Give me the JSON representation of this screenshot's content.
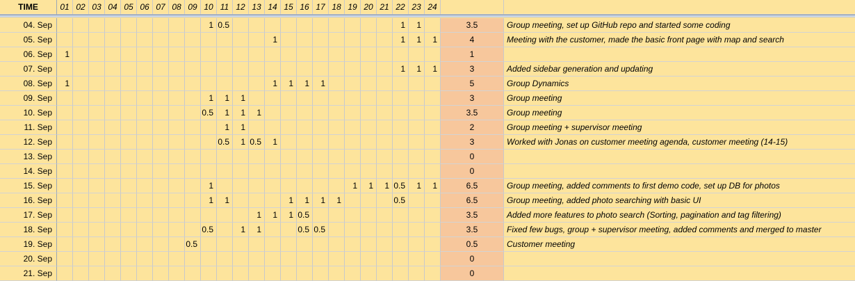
{
  "header": {
    "time_label": "TIME",
    "hours": [
      "01",
      "02",
      "03",
      "04",
      "05",
      "06",
      "07",
      "08",
      "09",
      "10",
      "11",
      "12",
      "13",
      "14",
      "15",
      "16",
      "17",
      "18",
      "19",
      "20",
      "21",
      "22",
      "23",
      "24"
    ]
  },
  "rows": [
    {
      "date": "04. Sep",
      "hours": {
        "10": "1",
        "11": "0.5",
        "22": "1",
        "23": "1"
      },
      "total": "3.5",
      "desc": "Group meeting, set up GitHub repo and started some coding"
    },
    {
      "date": "05. Sep",
      "hours": {
        "14": "1",
        "22": "1",
        "23": "1",
        "24": "1"
      },
      "total": "4",
      "desc": "Meeting with the customer, made the basic front page with map and search"
    },
    {
      "date": "06. Sep",
      "hours": {
        "01": "1"
      },
      "total": "1",
      "desc": ""
    },
    {
      "date": "07. Sep",
      "hours": {
        "22": "1",
        "23": "1",
        "24": "1"
      },
      "total": "3",
      "desc": "Added sidebar generation and updating"
    },
    {
      "date": "08. Sep",
      "hours": {
        "01": "1",
        "14": "1",
        "15": "1",
        "16": "1",
        "17": "1"
      },
      "total": "5",
      "desc": "Group Dynamics"
    },
    {
      "date": "09. Sep",
      "hours": {
        "10": "1",
        "11": "1",
        "12": "1"
      },
      "total": "3",
      "desc": "Group meeting"
    },
    {
      "date": "10. Sep",
      "hours": {
        "10": "0.5",
        "11": "1",
        "12": "1",
        "13": "1"
      },
      "total": "3.5",
      "desc": "Group meeting"
    },
    {
      "date": "11. Sep",
      "hours": {
        "11": "1",
        "12": "1"
      },
      "total": "2",
      "desc": "Group meeting + supervisor meeting"
    },
    {
      "date": "12. Sep",
      "hours": {
        "11": "0.5",
        "12": "1",
        "13": "0.5",
        "14": "1"
      },
      "total": "3",
      "desc": "Worked with Jonas on customer meeting agenda, customer meeting (14-15)"
    },
    {
      "date": "13. Sep",
      "hours": {},
      "total": "0",
      "desc": ""
    },
    {
      "date": "14. Sep",
      "hours": {},
      "total": "0",
      "desc": ""
    },
    {
      "date": "15. Sep",
      "hours": {
        "10": "1",
        "19": "1",
        "20": "1",
        "21": "1",
        "22": "0.5",
        "23": "1",
        "24": "1"
      },
      "total": "6.5",
      "desc": "Group meeting, added comments to first demo code, set up DB for photos"
    },
    {
      "date": "16. Sep",
      "hours": {
        "10": "1",
        "11": "1",
        "15": "1",
        "16": "1",
        "17": "1",
        "18": "1",
        "22": "0.5"
      },
      "total": "6.5",
      "desc": "Group meeting, added photo searching with basic UI"
    },
    {
      "date": "17. Sep",
      "hours": {
        "13": "1",
        "14": "1",
        "15": "1",
        "16": "0.5"
      },
      "total": "3.5",
      "desc": "Added more features to photo search (Sorting, pagination and tag filtering)"
    },
    {
      "date": "18. Sep",
      "hours": {
        "10": "0.5",
        "12": "1",
        "13": "1",
        "16": "0.5",
        "17": "0.5"
      },
      "total": "3.5",
      "desc": "Fixed few bugs, group + supervisor meeting, added comments and merged to master"
    },
    {
      "date": "19. Sep",
      "hours": {
        "09": "0.5"
      },
      "total": "0.5",
      "desc": "Customer meeting"
    },
    {
      "date": "20. Sep",
      "hours": {},
      "total": "0",
      "desc": ""
    },
    {
      "date": "21. Sep",
      "hours": {},
      "total": "0",
      "desc": ""
    }
  ]
}
